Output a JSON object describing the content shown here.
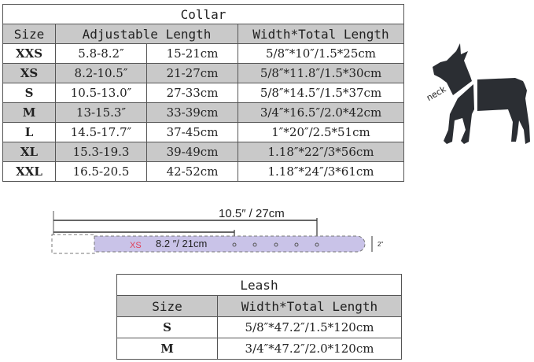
{
  "collar": {
    "title": "Collar",
    "headers": {
      "size": "Size",
      "adjustable": "Adjustable Length",
      "width_total": "Width*Total Length"
    },
    "rows": [
      {
        "size": "XXS",
        "inch": "5.8-8.2″",
        "cm": "15-21cm",
        "width_total": "5/8″*10″/1.5*25cm"
      },
      {
        "size": "XS",
        "inch": "8.2-10.5″",
        "cm": "21-27cm",
        "width_total": "5/8″*11.8″/1.5*30cm"
      },
      {
        "size": "S",
        "inch": "10.5-13.0″",
        "cm": "27-33cm",
        "width_total": "5/8″*14.5″/1.5*37cm"
      },
      {
        "size": "M",
        "inch": "13-15.3″",
        "cm": "33-39cm",
        "width_total": "3/4″*16.5″/2.0*42cm"
      },
      {
        "size": "L",
        "inch": "14.5-17.7″",
        "cm": "37-45cm",
        "width_total": "1″*20″/2.5*51cm"
      },
      {
        "size": "XL",
        "inch": "15.3-19.3",
        "cm": "39-49cm",
        "width_total": "1.18″*22″/3*56cm"
      },
      {
        "size": "XXL",
        "inch": "16.5-20.5",
        "cm": "42-52cm",
        "width_total": "1.18″*24″/3*61cm"
      }
    ]
  },
  "dog": {
    "label": "neck"
  },
  "belt": {
    "max_label": "10.5″ / 27cm",
    "size_label": "XS",
    "min_label": "8.2 ″/ 21cm",
    "width_label": "2\"",
    "fill_color": "#c9c3e8",
    "size_color": "#e0405a"
  },
  "leash": {
    "title": "Leash",
    "headers": {
      "size": "Size",
      "width_total": "Width*Total Length"
    },
    "rows": [
      {
        "size": "S",
        "width_total": "5/8″*47.2″/1.5*120cm"
      },
      {
        "size": "M",
        "width_total": "3/4″*47.2″/2.0*120cm"
      }
    ]
  }
}
